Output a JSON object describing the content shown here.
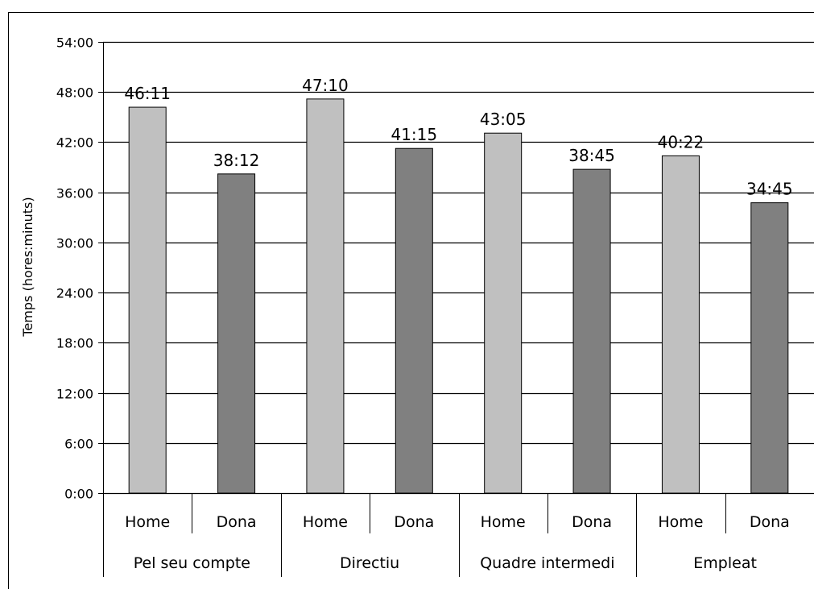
{
  "chart_data": {
    "type": "bar",
    "ylabel": "Temps (hores:minuts)",
    "xlabel": "",
    "y_unit": "minutes",
    "ylim": [
      0,
      3240
    ],
    "y_tick_values": [
      0,
      360,
      720,
      1080,
      1440,
      1800,
      2160,
      2520,
      2880,
      3240
    ],
    "y_tick_labels": [
      "0:00",
      "6:00",
      "12:00",
      "18:00",
      "24:00",
      "30:00",
      "36:00",
      "42:00",
      "48:00",
      "54:00"
    ],
    "grid": true,
    "groups": [
      "Pel seu compte",
      "Directiu",
      "Quadre intermedi",
      "Empleat"
    ],
    "subcategories": [
      "Home",
      "Dona"
    ],
    "bars": [
      {
        "group": "Pel seu compte",
        "sub": "Home",
        "value": 2771,
        "label": "46:11",
        "color": "#c0c0c0"
      },
      {
        "group": "Pel seu compte",
        "sub": "Dona",
        "value": 2292,
        "label": "38:12",
        "color": "#808080"
      },
      {
        "group": "Directiu",
        "sub": "Home",
        "value": 2830,
        "label": "47:10",
        "color": "#c0c0c0"
      },
      {
        "group": "Directiu",
        "sub": "Dona",
        "value": 2475,
        "label": "41:15",
        "color": "#808080"
      },
      {
        "group": "Quadre intermedi",
        "sub": "Home",
        "value": 2585,
        "label": "43:05",
        "color": "#c0c0c0"
      },
      {
        "group": "Quadre intermedi",
        "sub": "Dona",
        "value": 2325,
        "label": "38:45",
        "color": "#808080"
      },
      {
        "group": "Empleat",
        "sub": "Home",
        "value": 2422,
        "label": "40:22",
        "color": "#c0c0c0"
      },
      {
        "group": "Empleat",
        "sub": "Dona",
        "value": 2085,
        "label": "34:45",
        "color": "#808080"
      }
    ]
  }
}
